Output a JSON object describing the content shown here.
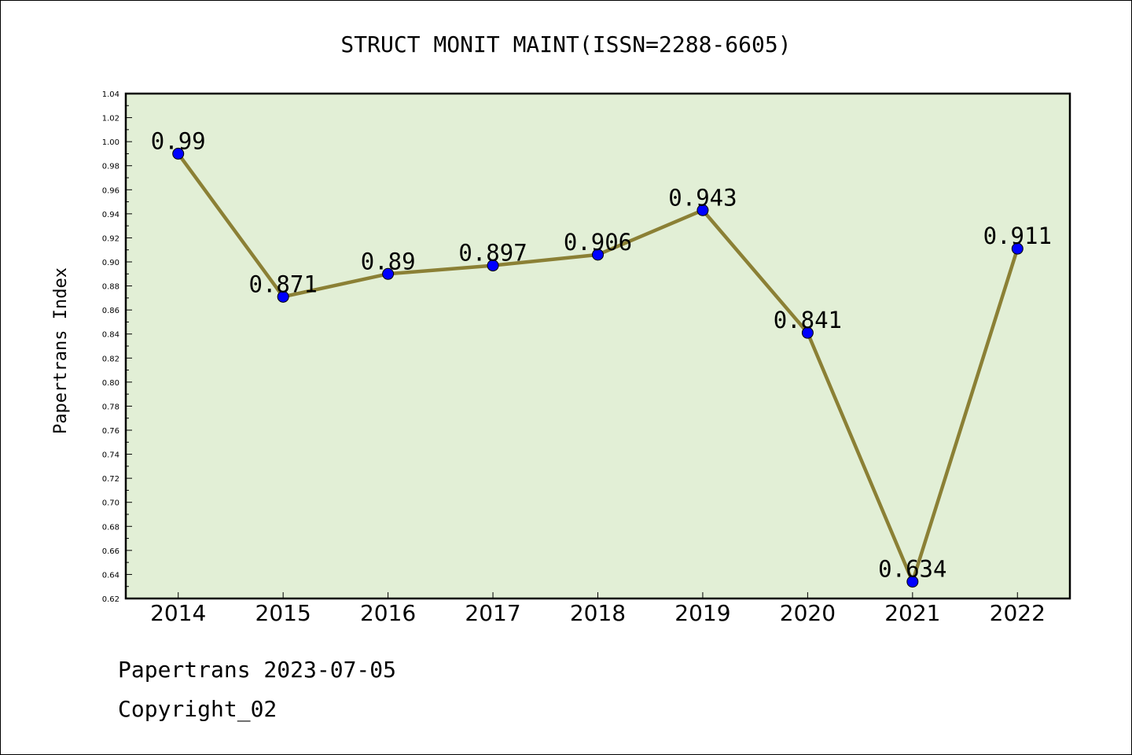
{
  "chart_data": {
    "type": "line",
    "title": "STRUCT MONIT MAINT(ISSN=2288-6605)",
    "xlabel": "",
    "ylabel": "Papertrans Index",
    "categories": [
      "2014",
      "2015",
      "2016",
      "2017",
      "2018",
      "2019",
      "2020",
      "2021",
      "2022"
    ],
    "values": [
      0.99,
      0.871,
      0.89,
      0.897,
      0.906,
      0.943,
      0.841,
      0.634,
      0.911
    ],
    "data_labels": [
      "0.99",
      "0.871",
      "0.89",
      "0.897",
      "0.906",
      "0.943",
      "0.841",
      "0.634",
      "0.911"
    ],
    "ylim": [
      0.62,
      1.04
    ],
    "yticks": [
      "0.62",
      "0.64",
      "0.66",
      "0.68",
      "0.70",
      "0.72",
      "0.74",
      "0.76",
      "0.78",
      "0.80",
      "0.82",
      "0.84",
      "0.86",
      "0.88",
      "0.90",
      "0.92",
      "0.94",
      "0.96",
      "0.98",
      "1.00",
      "1.02",
      "1.04"
    ],
    "grid": false,
    "colors": {
      "plot_background": "#e2efd6",
      "line": "#8b8035",
      "marker": "#0000ff"
    }
  },
  "footer": {
    "date_line": "Papertrans 2023-07-05",
    "copyright": "Copyright_02"
  }
}
